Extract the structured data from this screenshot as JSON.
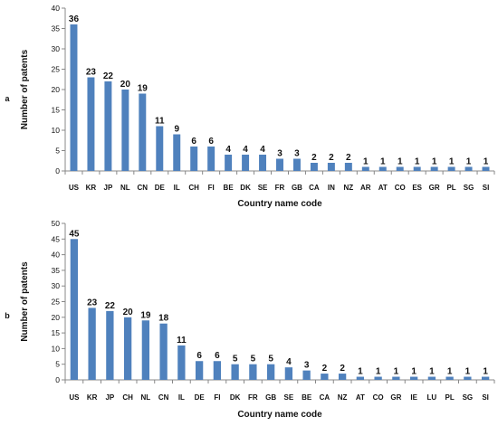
{
  "chart_data": [
    {
      "type": "bar",
      "panel_label": "a",
      "categories": [
        "US",
        "KR",
        "JP",
        "NL",
        "CN",
        "DE",
        "IL",
        "CH",
        "FI",
        "BE",
        "DK",
        "SE",
        "FR",
        "GB",
        "CA",
        "IN",
        "NZ",
        "AR",
        "AT",
        "CO",
        "ES",
        "GR",
        "PL",
        "SG",
        "SI"
      ],
      "values": [
        36,
        23,
        22,
        20,
        19,
        11,
        9,
        6,
        6,
        4,
        4,
        4,
        3,
        3,
        2,
        2,
        2,
        1,
        1,
        1,
        1,
        1,
        1,
        1,
        1
      ],
      "xlabel": "Country name code",
      "ylabel": "Number of patents",
      "ylim": [
        0,
        40
      ],
      "yticks": [
        0,
        5,
        10,
        15,
        20,
        25,
        30,
        35,
        40
      ],
      "color": "#4f81bd",
      "grid": false
    },
    {
      "type": "bar",
      "panel_label": "b",
      "categories": [
        "US",
        "KR",
        "JP",
        "CH",
        "NL",
        "CN",
        "IL",
        "DE",
        "FI",
        "DK",
        "FR",
        "GB",
        "SE",
        "BE",
        "CA",
        "NZ",
        "AT",
        "CO",
        "GR",
        "IE",
        "LU",
        "PL",
        "SG",
        "SI"
      ],
      "values": [
        45,
        23,
        22,
        20,
        19,
        18,
        11,
        6,
        6,
        5,
        5,
        5,
        4,
        3,
        2,
        2,
        1,
        1,
        1,
        1,
        1,
        1,
        1,
        1
      ],
      "xlabel": "Country name code",
      "ylabel": "Number of patents",
      "ylim": [
        0,
        50
      ],
      "yticks": [
        0,
        5,
        10,
        15,
        20,
        25,
        30,
        35,
        40,
        45,
        50
      ],
      "color": "#4f81bd",
      "grid": false
    }
  ]
}
